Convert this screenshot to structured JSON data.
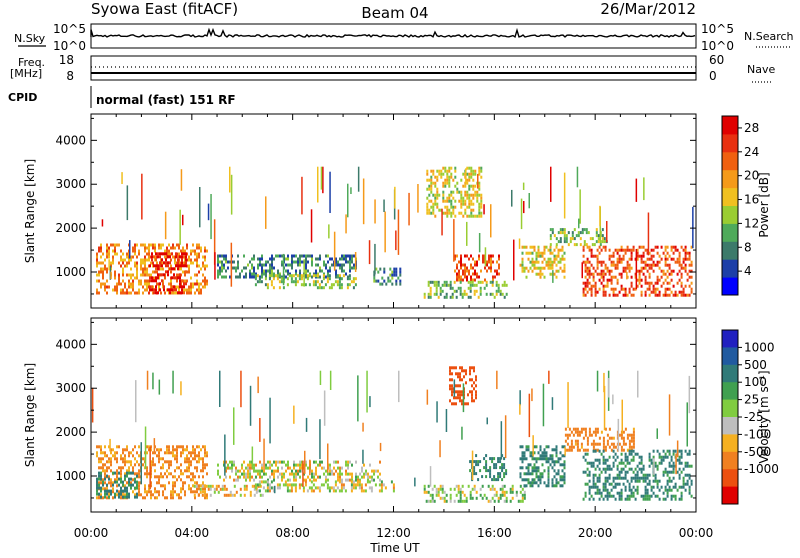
{
  "header": {
    "station": "Syowa East (fitACF)",
    "beam": "Beam 04",
    "date": "26/Mar/2012"
  },
  "status_panel": {
    "nsky_label": "N.Sky",
    "nsearch_label": "N.Search",
    "freq_label_1": "Freq.",
    "freq_label_2": "[MHz]",
    "nave_label": "Nave",
    "cpid_label": "CPID",
    "cpid_text": "normal (fast) 151 RF",
    "noise_left_ticks": [
      "10^5",
      "10^0"
    ],
    "noise_right_ticks": [
      "10^5",
      "10^0"
    ],
    "freq_left_ticks": [
      "18",
      "8"
    ],
    "freq_right_ticks": [
      "60",
      "0"
    ]
  },
  "colors": {
    "power_scale": [
      "#0000ff",
      "#1c3fa8",
      "#3c7a6a",
      "#4faa5a",
      "#9acd32",
      "#f0c020",
      "#f59a1a",
      "#f06010",
      "#e83010",
      "#e00000"
    ],
    "velocity_scale": [
      "#2020c0",
      "#205aa0",
      "#307a78",
      "#40a050",
      "#80cc40",
      "#bebebe",
      "#f5b020",
      "#f08020",
      "#ec5010",
      "#e00000"
    ]
  },
  "chart_data": [
    {
      "type": "heatmap",
      "title": "",
      "ylabel": "Slant Range [km]",
      "xlabel": "",
      "x_ticks": [
        "00:00",
        "04:00",
        "08:00",
        "12:00",
        "16:00",
        "20:00",
        "00:00"
      ],
      "xlim_hours": [
        0,
        24
      ],
      "ylim": [
        180,
        4600
      ],
      "y_ticks": [
        1000,
        2000,
        3000,
        4000
      ],
      "colorbar": {
        "label": "Power [dB]",
        "ticks": [
          4,
          8,
          12,
          16,
          20,
          24,
          28
        ],
        "range": [
          0,
          30
        ]
      },
      "echo_regions": [
        {
          "t0": 0.2,
          "t1": 4.6,
          "r0": 500,
          "r1": 1650,
          "value": 20
        },
        {
          "t0": 2.3,
          "t1": 3.8,
          "r0": 550,
          "r1": 1450,
          "value": 28
        },
        {
          "t0": 5.0,
          "t1": 10.5,
          "r0": 900,
          "r1": 1400,
          "value": 8
        },
        {
          "t0": 6.5,
          "t1": 10.5,
          "r0": 650,
          "r1": 950,
          "value": 12
        },
        {
          "t0": 11.2,
          "t1": 12.3,
          "r0": 700,
          "r1": 1100,
          "value": 8
        },
        {
          "t0": 13.3,
          "t1": 15.5,
          "r0": 2300,
          "r1": 3400,
          "value": 16
        },
        {
          "t0": 14.4,
          "t1": 16.2,
          "r0": 800,
          "r1": 1400,
          "value": 24
        },
        {
          "t0": 13.2,
          "t1": 16.5,
          "r0": 400,
          "r1": 800,
          "value": 12
        },
        {
          "t0": 17.0,
          "t1": 18.8,
          "r0": 900,
          "r1": 1600,
          "value": 16
        },
        {
          "t0": 18.2,
          "t1": 20.5,
          "r0": 1600,
          "r1": 2000,
          "value": 12
        },
        {
          "t0": 19.5,
          "t1": 23.8,
          "r0": 500,
          "r1": 1600,
          "value": 24
        }
      ]
    },
    {
      "type": "heatmap",
      "title": "",
      "ylabel": "Slant Range [km]",
      "xlabel": "Time UT",
      "x_ticks": [
        "00:00",
        "04:00",
        "08:00",
        "12:00",
        "16:00",
        "20:00",
        "00:00"
      ],
      "xlim_hours": [
        0,
        24
      ],
      "ylim": [
        180,
        4600
      ],
      "y_ticks": [
        1000,
        2000,
        3000,
        4000
      ],
      "colorbar": {
        "label": "Velocity [m s⁻¹]",
        "ticks": [
          "1000",
          "500",
          "100",
          "25",
          "-25",
          "-100",
          "-500",
          "-1000"
        ]
      },
      "echo_regions": [
        {
          "t0": 0.2,
          "t1": 4.6,
          "r0": 500,
          "r1": 1700,
          "value": -150
        },
        {
          "t0": 0.2,
          "t1": 1.8,
          "r0": 500,
          "r1": 1100,
          "value": 300
        },
        {
          "t0": 4.0,
          "t1": 7.0,
          "r0": 550,
          "r1": 800,
          "value": -60
        },
        {
          "t0": 5.0,
          "t1": 11.5,
          "r0": 900,
          "r1": 1350,
          "value": 0
        },
        {
          "t0": 6.5,
          "t1": 12.0,
          "r0": 650,
          "r1": 900,
          "value": 0
        },
        {
          "t0": 14.2,
          "t1": 15.3,
          "r0": 2600,
          "r1": 3500,
          "value": -800
        },
        {
          "t0": 15.0,
          "t1": 16.5,
          "r0": 900,
          "r1": 1500,
          "value": 300
        },
        {
          "t0": 13.2,
          "t1": 17.2,
          "r0": 400,
          "r1": 800,
          "value": 60
        },
        {
          "t0": 17.0,
          "t1": 18.8,
          "r0": 800,
          "r1": 1700,
          "value": 300
        },
        {
          "t0": 18.8,
          "t1": 21.5,
          "r0": 1600,
          "r1": 2100,
          "value": -200
        },
        {
          "t0": 19.5,
          "t1": 23.8,
          "r0": 500,
          "r1": 1600,
          "value": 300
        }
      ]
    }
  ]
}
